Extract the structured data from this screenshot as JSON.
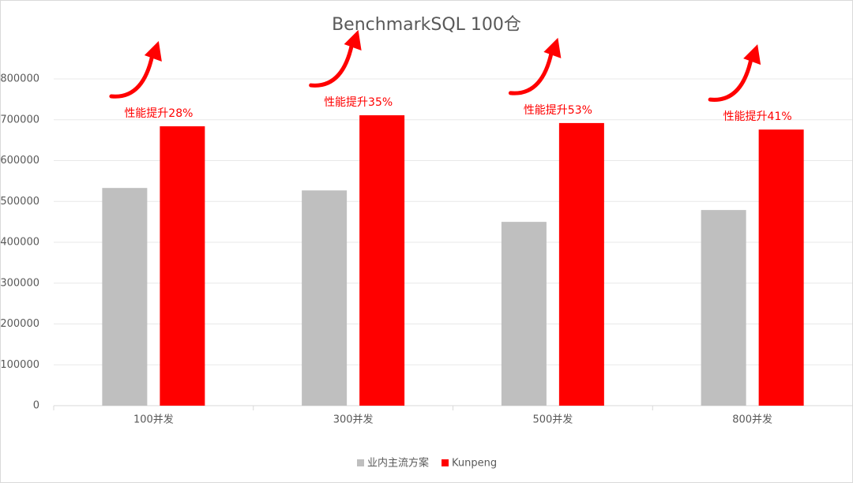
{
  "chart_data": {
    "type": "bar",
    "title": "BenchmarkSQL 100仓",
    "categories": [
      "100并发",
      "300并发",
      "500并发",
      "800并发"
    ],
    "series": [
      {
        "name": "业内主流方案",
        "color": "#bfbfbf",
        "values": [
          533000,
          527000,
          450000,
          479000
        ]
      },
      {
        "name": "Kunpeng",
        "color": "#ff0000",
        "values": [
          684000,
          711000,
          692000,
          676000
        ]
      }
    ],
    "annotations": [
      "性能提升28%",
      "性能提升35%",
      "性能提升53%",
      "性能提升41%"
    ],
    "annotation_color": "#ff0000",
    "ylim": [
      0,
      800000
    ],
    "yticks": [
      0,
      100000,
      200000,
      300000,
      400000,
      500000,
      600000,
      700000,
      800000
    ],
    "grid": true,
    "legend": "bottom"
  }
}
